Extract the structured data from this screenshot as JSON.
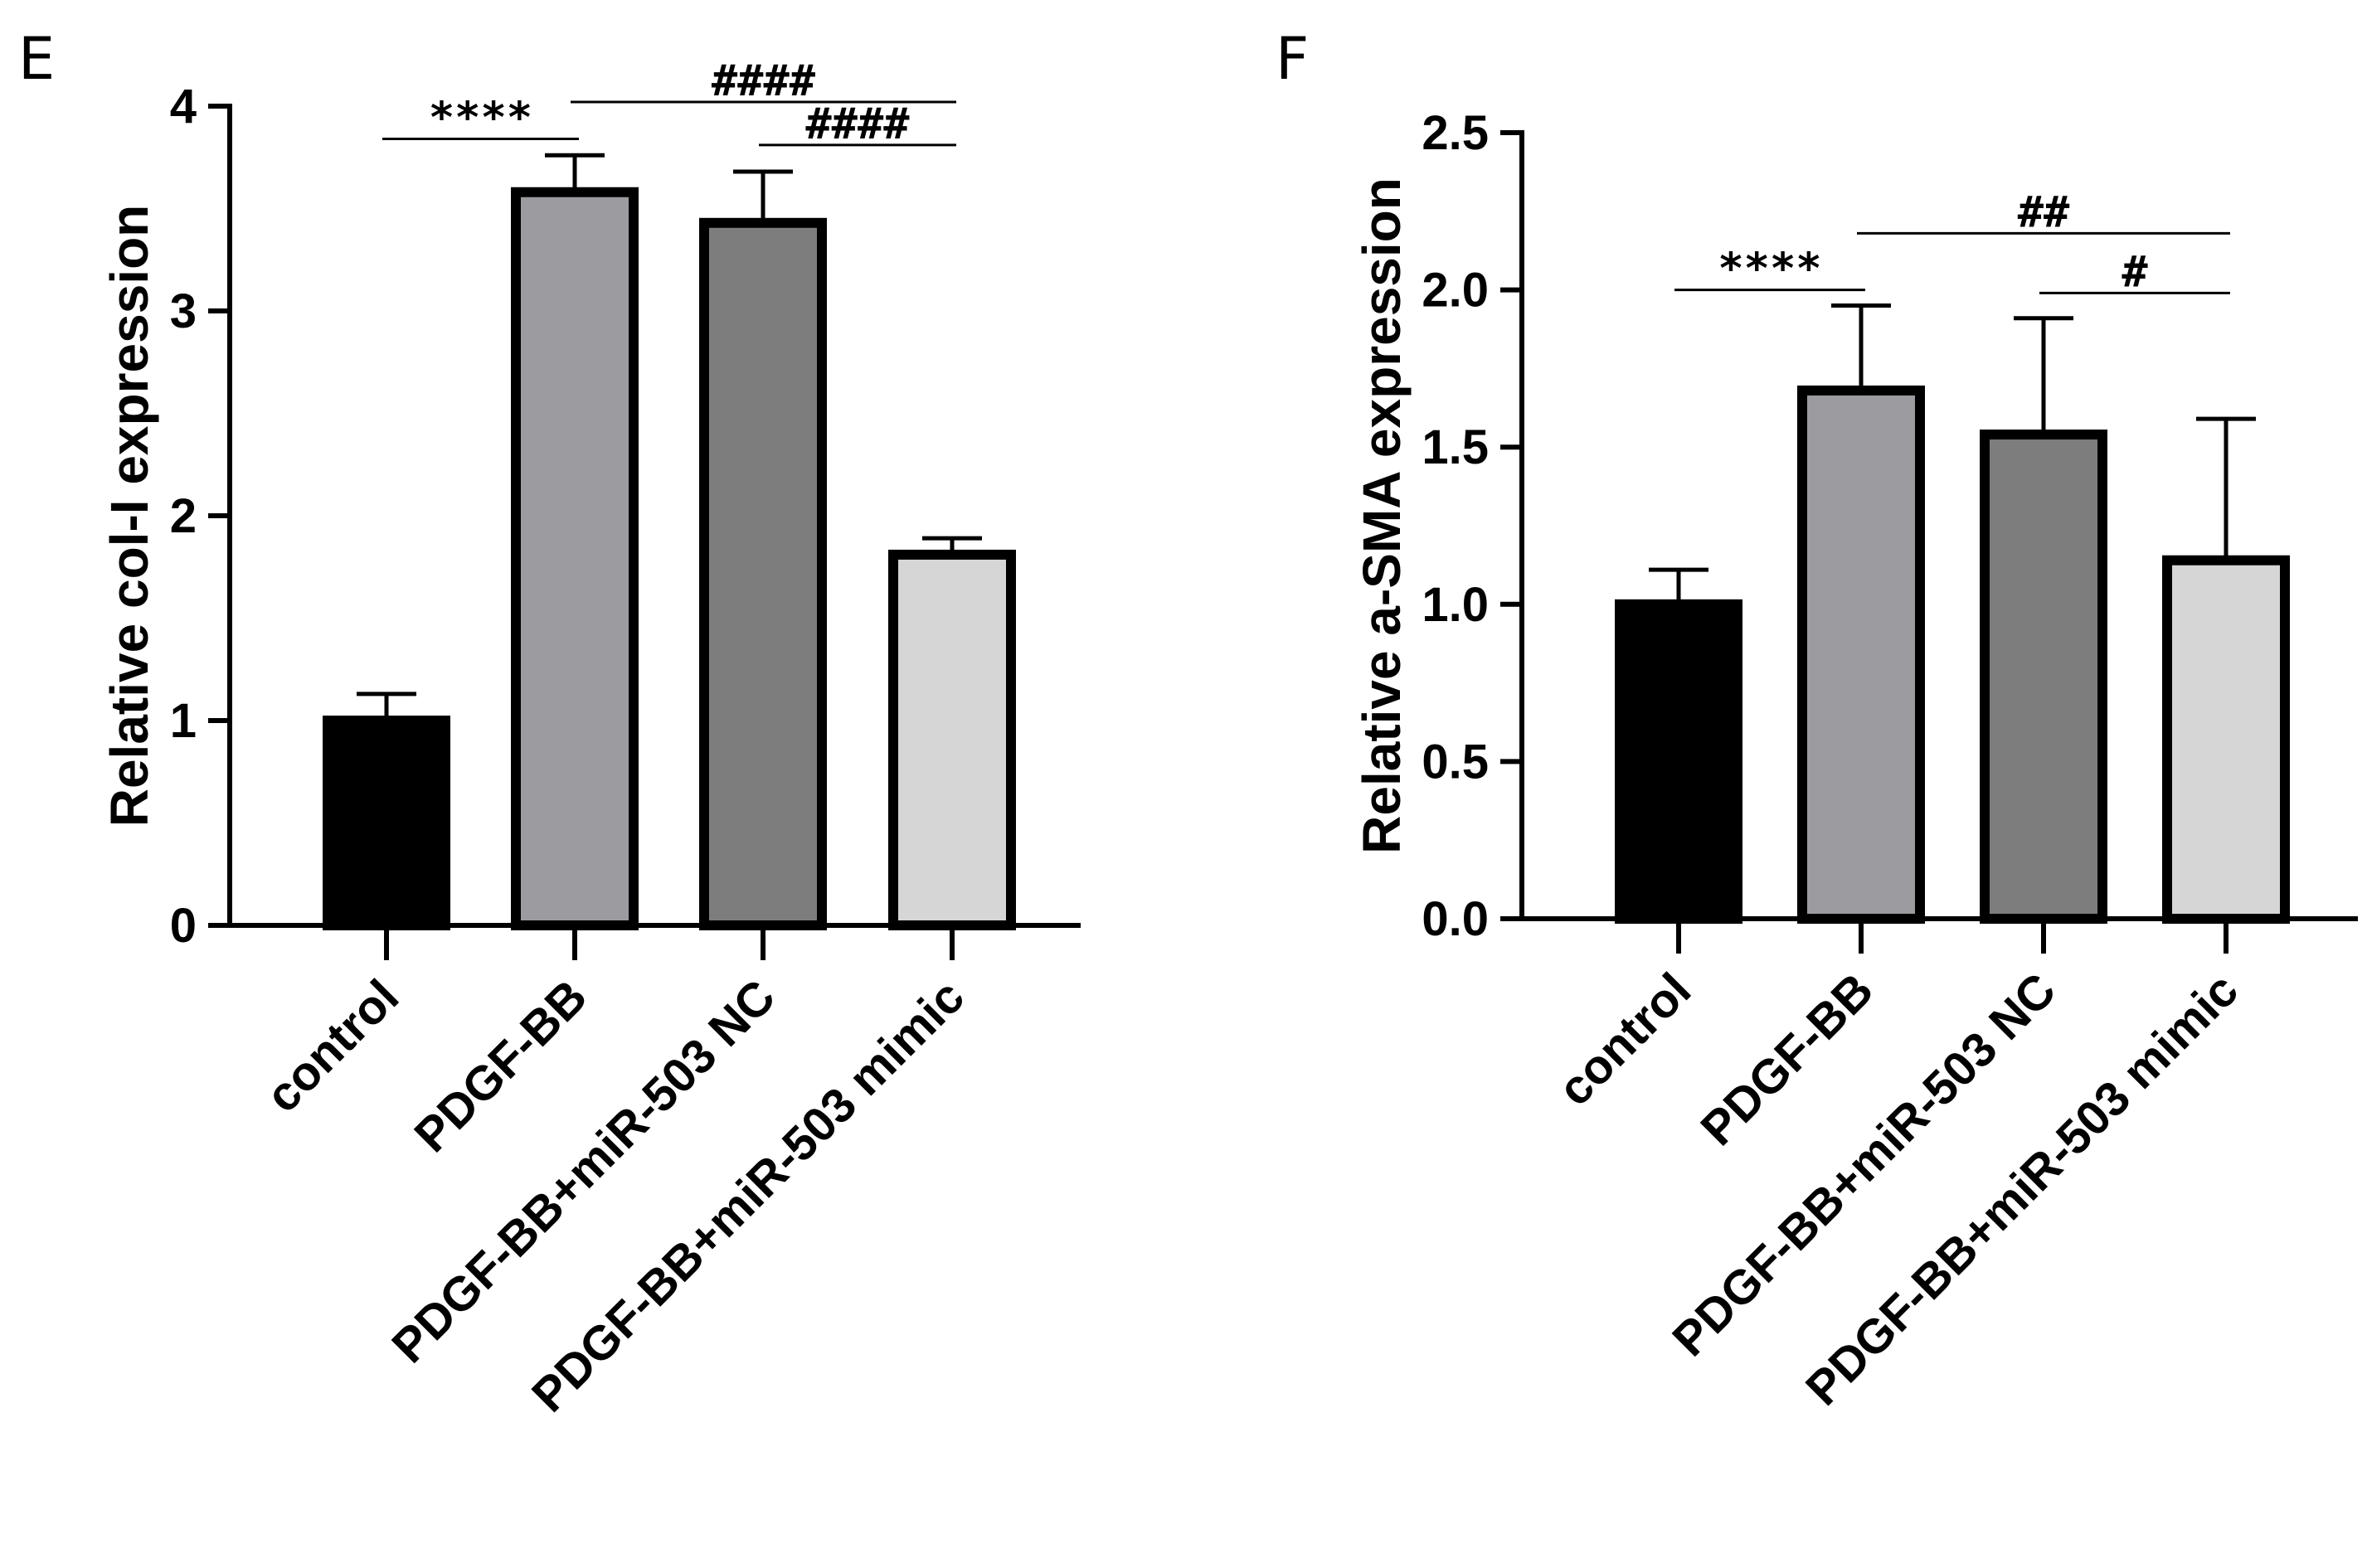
{
  "chart_data": [
    {
      "panel": "E",
      "type": "bar",
      "ylabel": "Relative col-I expression",
      "xlabel": "",
      "categories": [
        "control",
        "PDGF-BB",
        "PDGF-BB+miR-503 NC",
        "PDGF-BB+miR-503 mimic"
      ],
      "values": [
        1.0,
        3.58,
        3.43,
        1.81
      ],
      "errors": [
        0.13,
        0.18,
        0.25,
        0.08
      ],
      "colors": [
        "#000000",
        "#9c9ca0",
        "#7d7d7d",
        "#d6d6d6"
      ],
      "ylim": [
        0,
        4
      ],
      "yticks": [
        0,
        1,
        2,
        3,
        4
      ],
      "yticklabels": [
        "0",
        "1",
        "2",
        "3",
        "4"
      ],
      "significance": [
        {
          "from": 0,
          "to": 1,
          "label": "****",
          "y": 3.84
        },
        {
          "from": 1,
          "to": 3,
          "label": "####",
          "y": 4.02
        },
        {
          "from": 2,
          "to": 3,
          "label": "####",
          "y": 3.81
        }
      ]
    },
    {
      "panel": "F",
      "type": "bar",
      "ylabel": "Relative a-SMA expression",
      "xlabel": "",
      "categories": [
        "control",
        "PDGF-BB",
        "PDGF-BB+miR-503 NC",
        "PDGF-BB+miR-503 mimic"
      ],
      "values": [
        1.0,
        1.68,
        1.54,
        1.14
      ],
      "errors": [
        0.11,
        0.27,
        0.37,
        0.45
      ],
      "colors": [
        "#000000",
        "#9c9ca0",
        "#7d7d7d",
        "#d6d6d6"
      ],
      "ylim": [
        0,
        2.5
      ],
      "yticks": [
        0,
        0.5,
        1.0,
        1.5,
        2.0,
        2.5
      ],
      "yticklabels": [
        "0.0",
        "0.5",
        "1.0",
        "1.5",
        "2.0",
        "2.5"
      ],
      "significance": [
        {
          "from": 0,
          "to": 1,
          "label": "****",
          "y": 2.0
        },
        {
          "from": 1,
          "to": 3,
          "label": "##",
          "y": 2.18
        },
        {
          "from": 2,
          "to": 3,
          "label": "#",
          "y": 1.99
        }
      ]
    }
  ]
}
